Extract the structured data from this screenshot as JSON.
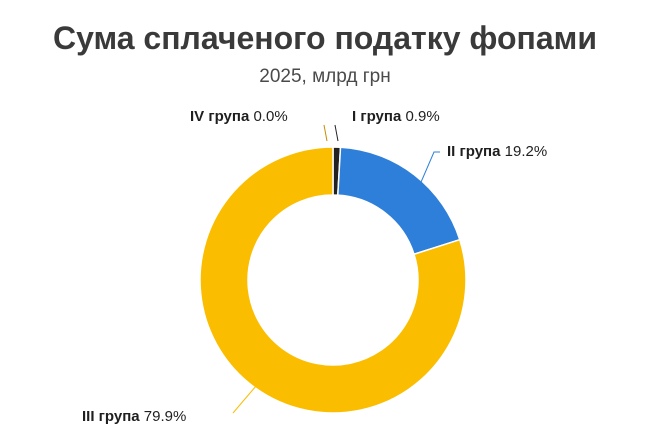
{
  "chart_data": {
    "type": "pie",
    "title": "Сума сплаченого податку фопами",
    "subtitle": "2025, млрд грн",
    "categories": [
      "I група",
      "II група",
      "III група",
      "IV група"
    ],
    "values": [
      0.9,
      19.2,
      79.9,
      0.0
    ],
    "value_labels": [
      "0.9%",
      "19.2%",
      "79.9%",
      "0.0%"
    ],
    "colors": [
      "#222222",
      "#2e7fd9",
      "#fbbd00",
      "#c98a00"
    ],
    "legend": "none"
  }
}
